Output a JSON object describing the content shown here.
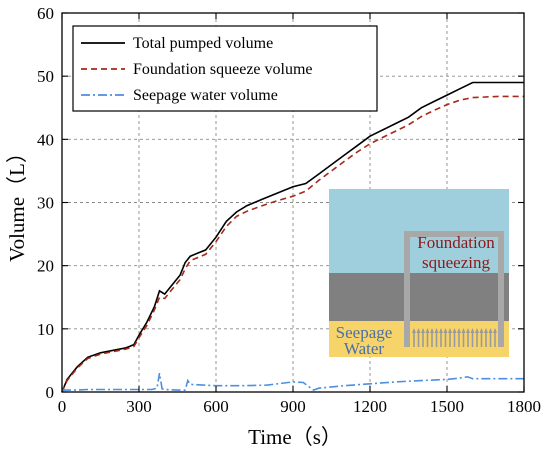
{
  "chart_data": {
    "type": "line",
    "xlabel": "Time（s）",
    "ylabel": "Volume（L）",
    "xlim": [
      0,
      1800
    ],
    "ylim": [
      0,
      60
    ],
    "xticks": [
      0,
      300,
      600,
      900,
      1200,
      1500,
      1800
    ],
    "yticks": [
      0,
      10,
      20,
      30,
      40,
      50,
      60
    ],
    "grid": true,
    "legend_position": "top-left",
    "series": [
      {
        "name": "Total pumped volume",
        "color": "#000000",
        "style": "solid",
        "x": [
          0,
          20,
          60,
          100,
          150,
          200,
          250,
          280,
          300,
          330,
          360,
          380,
          400,
          420,
          440,
          460,
          480,
          500,
          530,
          560,
          600,
          640,
          680,
          720,
          780,
          840,
          900,
          950,
          1000,
          1050,
          1100,
          1150,
          1200,
          1250,
          1300,
          1350,
          1400,
          1450,
          1500,
          1550,
          1600,
          1650,
          1700,
          1750,
          1800
        ],
        "values": [
          0,
          2,
          4,
          5.5,
          6.2,
          6.6,
          7,
          7.5,
          9,
          11,
          13.5,
          16,
          15.5,
          16.5,
          17.5,
          18.5,
          20.5,
          21.5,
          22,
          22.5,
          24.5,
          27,
          28.5,
          29.5,
          30.5,
          31.5,
          32.5,
          33,
          34.5,
          36,
          37.5,
          39,
          40.5,
          41.5,
          42.5,
          43.5,
          45,
          46,
          47,
          48,
          49,
          49,
          49,
          49,
          49
        ]
      },
      {
        "name": "Foundation squeeze volume",
        "color": "#a52a1a",
        "style": "dashed",
        "x": [
          0,
          20,
          60,
          100,
          150,
          200,
          250,
          280,
          300,
          330,
          360,
          380,
          400,
          420,
          440,
          460,
          480,
          500,
          530,
          560,
          600,
          640,
          680,
          720,
          780,
          840,
          900,
          950,
          1000,
          1050,
          1100,
          1150,
          1200,
          1250,
          1300,
          1350,
          1400,
          1450,
          1500,
          1550,
          1600,
          1650,
          1700,
          1750,
          1800
        ],
        "values": [
          0,
          1.8,
          3.8,
          5.3,
          6,
          6.4,
          6.8,
          7.2,
          8.6,
          10.5,
          13,
          15,
          14.8,
          15.8,
          16.8,
          17.8,
          19.5,
          20.8,
          21.3,
          21.8,
          23.8,
          26.2,
          27.8,
          28.6,
          29.5,
          30.3,
          31,
          31.8,
          33.5,
          35,
          36.5,
          38,
          39.3,
          40.3,
          41.3,
          42.3,
          43.6,
          44.6,
          45.5,
          46.2,
          46.6,
          46.7,
          46.8,
          46.8,
          46.8
        ]
      },
      {
        "name": "Seepage water volume",
        "color": "#4d8fe0",
        "style": "dashdot",
        "x": [
          0,
          50,
          100,
          150,
          200,
          250,
          300,
          350,
          370,
          380,
          390,
          400,
          450,
          480,
          490,
          500,
          600,
          700,
          800,
          900,
          940,
          980,
          1000,
          1050,
          1100,
          1200,
          1300,
          1400,
          1500,
          1550,
          1580,
          1600,
          1650,
          1700,
          1750,
          1800
        ],
        "values": [
          0.3,
          0.3,
          0.4,
          0.4,
          0.4,
          0.4,
          0.4,
          0.4,
          0.6,
          3,
          0.5,
          0.4,
          0.3,
          0.3,
          1.8,
          1.2,
          1,
          1,
          1.1,
          1.6,
          1.5,
          0.3,
          0.6,
          0.8,
          1,
          1.3,
          1.6,
          1.8,
          2,
          2.2,
          2.4,
          2.1,
          2.1,
          2.1,
          2.1,
          2.1
        ]
      }
    ]
  },
  "inset": {
    "label_top": "Foundation\nsqueezing",
    "label_bottom": "Seepage\nWater",
    "colors": {
      "water": "#9fcfdc",
      "soil": "#808080",
      "seepage": "#f7d46a",
      "frame": "#a8a8a8",
      "label_top": "#8b1a1a",
      "label_bottom": "#4a6fa8"
    }
  }
}
